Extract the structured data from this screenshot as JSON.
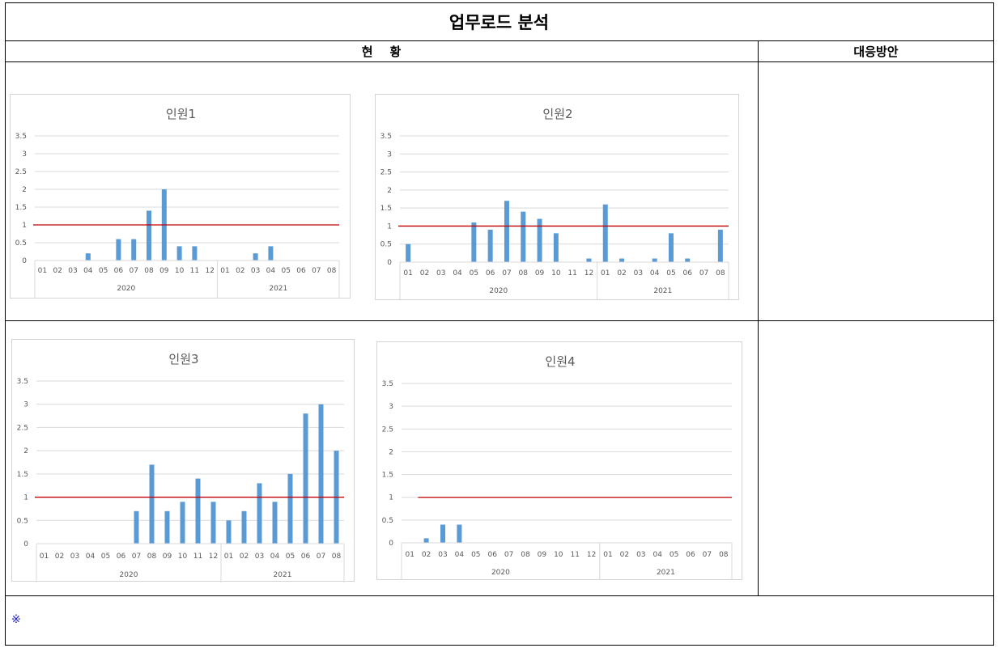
{
  "report": {
    "title": "업무로드 분석",
    "col_status": "현    황",
    "col_action": "대응방안",
    "note_mark": "※"
  },
  "colors": {
    "bar": "#5b9bd5",
    "threshold": "#c00000",
    "grid": "#d9d9d9",
    "text": "#595959"
  },
  "chart_data": [
    {
      "type": "bar",
      "title": "인원1",
      "categories": [
        "01",
        "02",
        "03",
        "04",
        "05",
        "06",
        "07",
        "08",
        "09",
        "10",
        "11",
        "12",
        "01",
        "02",
        "03",
        "04",
        "05",
        "06",
        "07",
        "08"
      ],
      "groups": [
        {
          "label": "2020",
          "count": 12
        },
        {
          "label": "2021",
          "count": 8
        }
      ],
      "values": [
        0,
        0,
        0,
        0.2,
        0,
        0.6,
        0.6,
        1.4,
        2,
        0.4,
        0.4,
        0,
        0,
        0,
        0.2,
        0.4,
        0,
        0,
        0,
        0
      ],
      "threshold": 1,
      "ylim": [
        0,
        3.5
      ],
      "yticks": [
        "0",
        "0.5",
        "1",
        "1.5",
        "2",
        "2.5",
        "3",
        "3.5"
      ],
      "grid": true
    },
    {
      "type": "bar",
      "title": "인원2",
      "categories": [
        "01",
        "02",
        "03",
        "04",
        "05",
        "06",
        "07",
        "08",
        "09",
        "10",
        "11",
        "12",
        "01",
        "02",
        "03",
        "04",
        "05",
        "06",
        "07",
        "08"
      ],
      "groups": [
        {
          "label": "2020",
          "count": 12
        },
        {
          "label": "2021",
          "count": 8
        }
      ],
      "values": [
        0.5,
        0,
        0,
        0,
        1.1,
        0.9,
        1.7,
        1.4,
        1.2,
        0.8,
        0,
        0.1,
        1.6,
        0.1,
        0,
        0.1,
        0.8,
        0.1,
        0,
        0.9
      ],
      "threshold": 1,
      "ylim": [
        0,
        3.5
      ],
      "yticks": [
        "0",
        "0.5",
        "1",
        "1.5",
        "2",
        "2.5",
        "3",
        "3.5"
      ],
      "grid": true
    },
    {
      "type": "bar",
      "title": "인원3",
      "categories": [
        "01",
        "02",
        "03",
        "04",
        "05",
        "06",
        "07",
        "08",
        "09",
        "10",
        "11",
        "12",
        "01",
        "02",
        "03",
        "04",
        "05",
        "06",
        "07",
        "08"
      ],
      "groups": [
        {
          "label": "2020",
          "count": 12
        },
        {
          "label": "2021",
          "count": 8
        }
      ],
      "values": [
        0,
        0,
        0,
        0,
        0,
        0,
        0.7,
        1.7,
        0.7,
        0.9,
        1.4,
        0.9,
        0.5,
        0.7,
        1.3,
        0.9,
        1.5,
        2.8,
        3,
        2
      ],
      "threshold": 1,
      "ylim": [
        0,
        3.5
      ],
      "yticks": [
        "0",
        "0.5",
        "1",
        "1.5",
        "2",
        "2.5",
        "3",
        "3.5"
      ],
      "grid": true
    },
    {
      "type": "bar",
      "title": "인원4",
      "categories": [
        "01",
        "02",
        "03",
        "04",
        "05",
        "06",
        "07",
        "08",
        "09",
        "10",
        "11",
        "12",
        "01",
        "02",
        "03",
        "04",
        "05",
        "06",
        "07",
        "08"
      ],
      "groups": [
        {
          "label": "2020",
          "count": 12
        },
        {
          "label": "2021",
          "count": 8
        }
      ],
      "values": [
        0,
        0.1,
        0.4,
        0.4,
        0,
        0,
        0,
        0,
        0,
        0,
        0,
        0,
        0,
        0,
        0,
        0,
        0,
        0,
        0,
        0
      ],
      "threshold": 1,
      "threshold_span": [
        1,
        19
      ],
      "ylim": [
        0,
        3.5
      ],
      "yticks": [
        "0",
        "0.5",
        "1",
        "1.5",
        "2",
        "2.5",
        "3",
        "3.5"
      ],
      "grid": true
    }
  ]
}
